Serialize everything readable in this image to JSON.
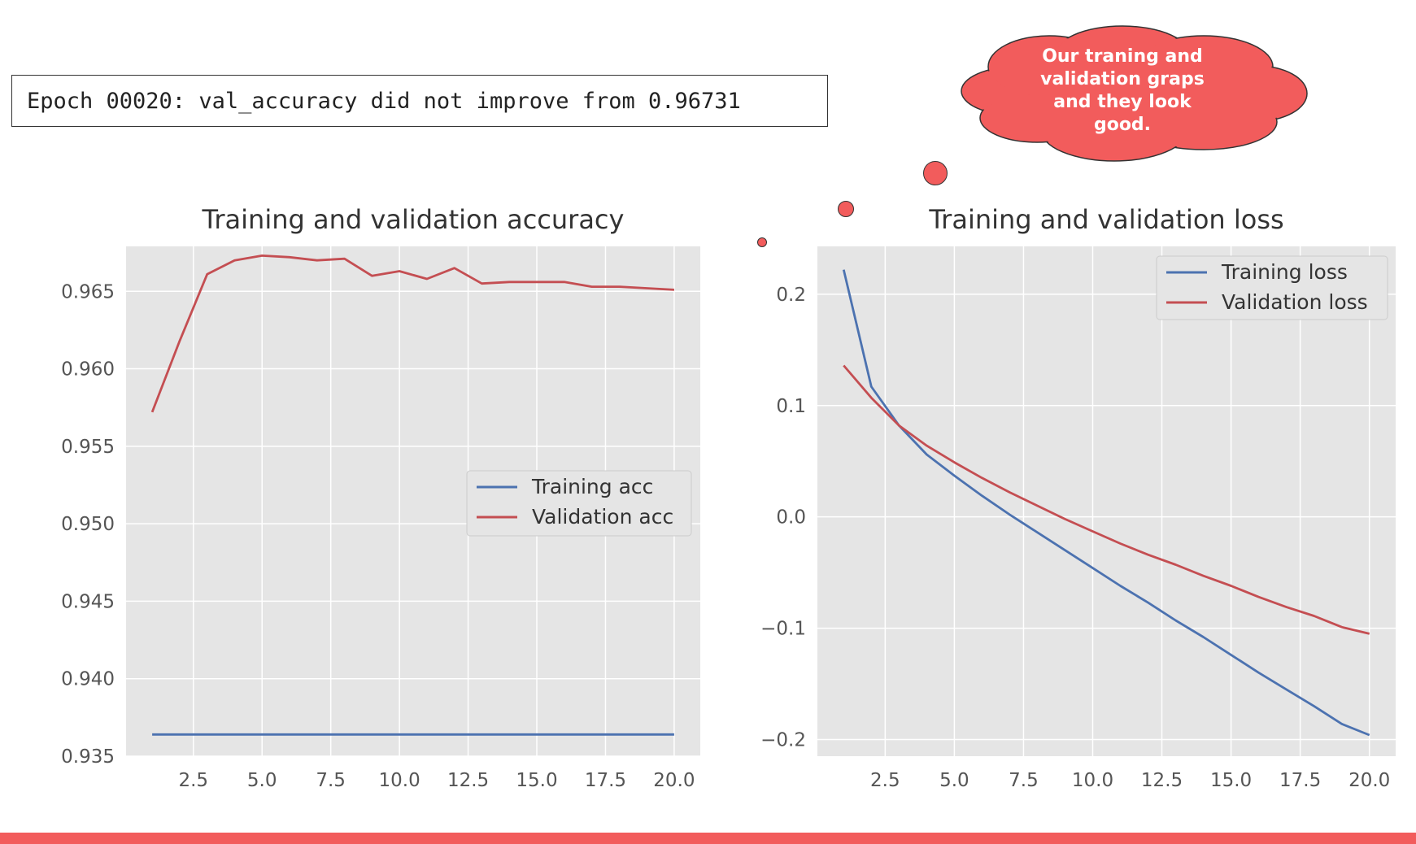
{
  "log_line": "Epoch 00020: val_accuracy did not improve from 0.96731",
  "callout": {
    "text": "Our traning and validation graps and they look good.",
    "color": "#f25c5c"
  },
  "colors": {
    "training": "#4c72b0",
    "validation": "#c44e52",
    "plot_bg": "#e5e5e5",
    "grid": "#ffffff",
    "accent_bar": "#f25c5c"
  },
  "chart_data": [
    {
      "type": "line",
      "title": "Training and validation accuracy",
      "xlabel": "",
      "ylabel": "",
      "xlim": [
        0.05,
        20.95
      ],
      "ylim": [
        0.935,
        0.9679
      ],
      "xticks": [
        2.5,
        5.0,
        7.5,
        10.0,
        12.5,
        15.0,
        17.5,
        20.0
      ],
      "xtick_labels": [
        "2.5",
        "5.0",
        "7.5",
        "10.0",
        "12.5",
        "15.0",
        "17.5",
        "20.0"
      ],
      "yticks": [
        0.935,
        0.94,
        0.945,
        0.95,
        0.955,
        0.96,
        0.965
      ],
      "ytick_labels": [
        "0.935",
        "0.940",
        "0.945",
        "0.950",
        "0.955",
        "0.960",
        "0.965"
      ],
      "grid": true,
      "legend_position": "center-right",
      "x": [
        1,
        2,
        3,
        4,
        5,
        6,
        7,
        8,
        9,
        10,
        11,
        12,
        13,
        14,
        15,
        16,
        17,
        18,
        19,
        20
      ],
      "series": [
        {
          "name": "Training acc",
          "values": [
            0.9364,
            0.9364,
            0.9364,
            0.9364,
            0.9364,
            0.9364,
            0.9364,
            0.9364,
            0.9364,
            0.9364,
            0.9364,
            0.9364,
            0.9364,
            0.9364,
            0.9364,
            0.9364,
            0.9364,
            0.9364,
            0.9364,
            0.9364
          ]
        },
        {
          "name": "Validation acc",
          "values": [
            0.9572,
            0.9618,
            0.9661,
            0.967,
            0.9673,
            0.9672,
            0.967,
            0.9671,
            0.966,
            0.9663,
            0.9658,
            0.9665,
            0.9655,
            0.9656,
            0.9656,
            0.9656,
            0.9653,
            0.9653,
            0.9652,
            0.9651
          ]
        }
      ]
    },
    {
      "type": "line",
      "title": "Training and validation loss",
      "xlabel": "",
      "ylabel": "",
      "xlim": [
        0.05,
        20.95
      ],
      "ylim": [
        -0.215,
        0.243
      ],
      "xticks": [
        2.5,
        5.0,
        7.5,
        10.0,
        12.5,
        15.0,
        17.5,
        20.0
      ],
      "xtick_labels": [
        "2.5",
        "5.0",
        "7.5",
        "10.0",
        "12.5",
        "15.0",
        "17.5",
        "20.0"
      ],
      "yticks": [
        -0.2,
        -0.1,
        0.0,
        0.1,
        0.2
      ],
      "ytick_labels": [
        "−0.2",
        "−0.1",
        "0.0",
        "0.1",
        "0.2"
      ],
      "grid": true,
      "legend_position": "top-right",
      "x": [
        1,
        2,
        3,
        4,
        5,
        6,
        7,
        8,
        9,
        10,
        11,
        12,
        13,
        14,
        15,
        16,
        17,
        18,
        19,
        20
      ],
      "series": [
        {
          "name": "Training loss",
          "values": [
            0.222,
            0.117,
            0.082,
            0.056,
            0.037,
            0.019,
            0.002,
            -0.014,
            -0.03,
            -0.046,
            -0.062,
            -0.077,
            -0.093,
            -0.108,
            -0.124,
            -0.14,
            -0.155,
            -0.17,
            -0.186,
            -0.196
          ]
        },
        {
          "name": "Validation loss",
          "values": [
            0.136,
            0.107,
            0.082,
            0.064,
            0.049,
            0.035,
            0.022,
            0.01,
            -0.002,
            -0.013,
            -0.024,
            -0.034,
            -0.043,
            -0.053,
            -0.062,
            -0.072,
            -0.081,
            -0.089,
            -0.099,
            -0.105
          ]
        }
      ]
    }
  ]
}
